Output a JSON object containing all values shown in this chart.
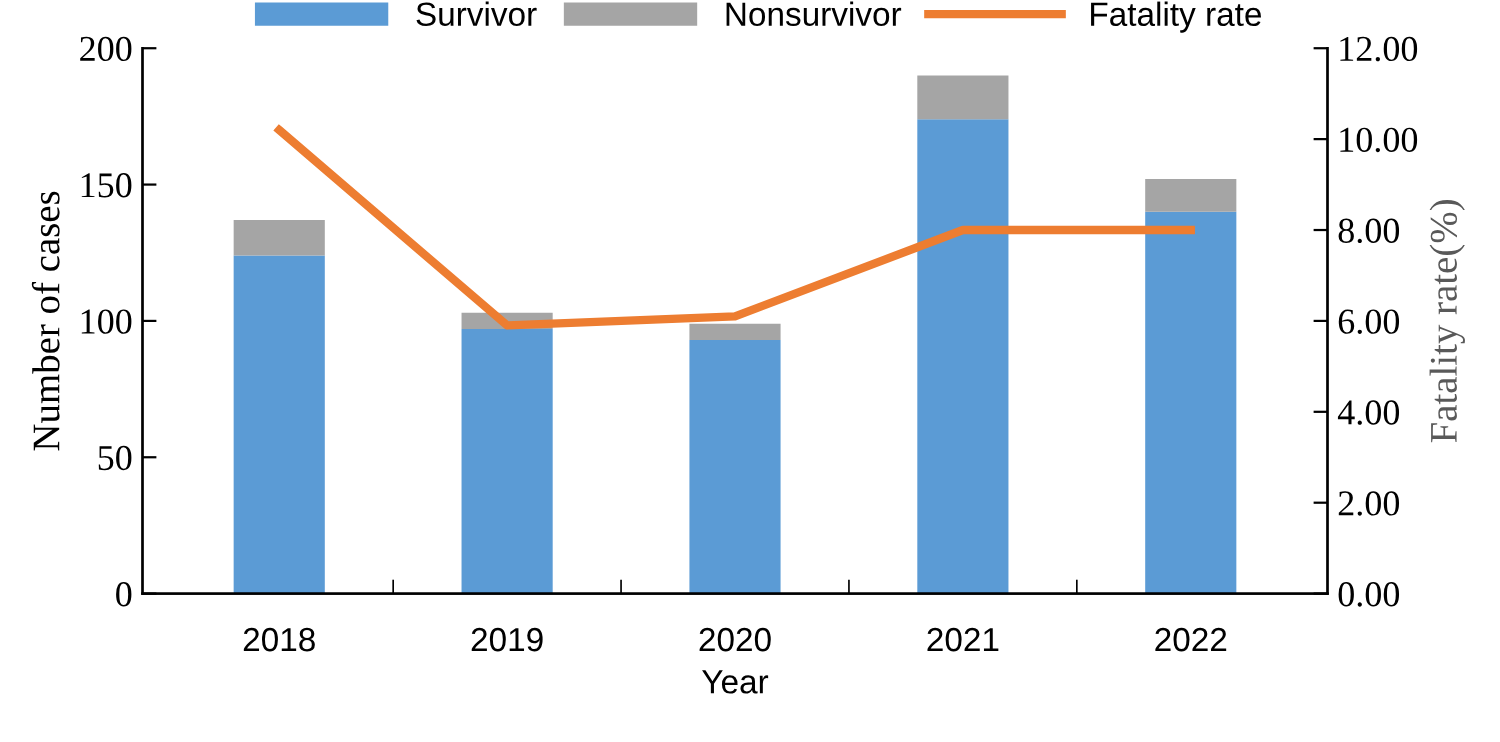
{
  "chart_data": {
    "type": "bar",
    "stacked": true,
    "xlabel": "Year",
    "ylabel": "Number of cases",
    "y2label": "Fatality rate(%)",
    "categories": [
      "2018",
      "2019",
      "2020",
      "2021",
      "2022"
    ],
    "series": [
      {
        "name": "Survivor",
        "color": "#5b9bd5",
        "values": [
          124,
          97,
          93,
          174,
          140
        ]
      },
      {
        "name": "Nonsurvivor",
        "color": "#a5a5a5",
        "values": [
          13,
          6,
          6,
          16,
          12
        ]
      },
      {
        "name": "Fatality rate",
        "type": "line",
        "axis": "y2",
        "color": "#ed7d31",
        "values": [
          10.2,
          5.9,
          6.1,
          8.0,
          8.0
        ]
      }
    ],
    "ylim": [
      0,
      200
    ],
    "yticks": [
      0,
      50,
      100,
      150,
      200
    ],
    "y2lim": [
      0,
      12
    ],
    "y2ticks": [
      {
        "value": 0,
        "label": "0.00"
      },
      {
        "value": 2,
        "label": "2.00"
      },
      {
        "value": 4,
        "label": "4.00"
      },
      {
        "value": 6,
        "label": "6.00"
      },
      {
        "value": 8,
        "label": "8.00"
      },
      {
        "value": 10,
        "label": "10.00"
      },
      {
        "value": 12,
        "label": "12.00"
      }
    ],
    "legend": "top",
    "grid": false,
    "marker": "none",
    "line_style": "solid"
  }
}
